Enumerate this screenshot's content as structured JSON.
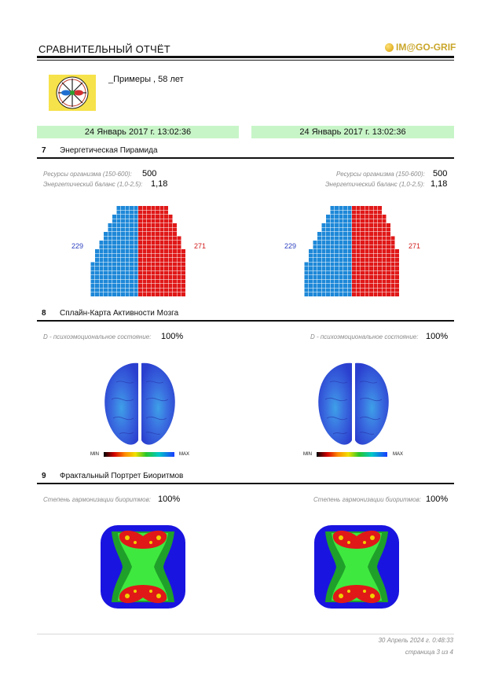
{
  "header": {
    "title": "СРАВНИТЕЛЬНЫЙ ОТЧЁТ",
    "brand": "IM@GO-GRIF"
  },
  "patient": {
    "text": "_Примеры , 58 лет"
  },
  "dates": {
    "left": "24 Январь 2017 г. 13:02:36",
    "right": "24 Январь 2017 г. 13:02:36"
  },
  "sections": {
    "s7": {
      "num": "7",
      "title": "Энергетическая Пирамида",
      "resources_label": "Ресурсы организма (150-600):",
      "balance_label": "Энергетический баланс (1,0-2,5):",
      "left": {
        "resources": "500",
        "balance": "1,18",
        "blue_count": "229",
        "red_count": "271"
      },
      "right": {
        "resources": "500",
        "balance": "1,18",
        "blue_count": "229",
        "red_count": "271"
      }
    },
    "s8": {
      "num": "8",
      "title": "Сплайн-Карта Активности Мозга",
      "state_label": "D - психоэмоциональное состояние:",
      "left_value": "100%",
      "right_value": "100%",
      "scale_min": "MIN",
      "scale_max": "MAX"
    },
    "s9": {
      "num": "9",
      "title": "Фрактальный Портрет Биоритмов",
      "harm_label": "Степень гармонизации биоритмов:",
      "left_value": "100%",
      "right_value": "100%"
    }
  },
  "footer": {
    "date": "30 Апрель 2024 г. 0:48:33",
    "page": "страница 3 из 4"
  },
  "colors": {
    "blue_cell": "#1e88d8",
    "red_cell": "#e01818",
    "date_bg": "#c8f5c8",
    "brand": "#c9a62a"
  }
}
